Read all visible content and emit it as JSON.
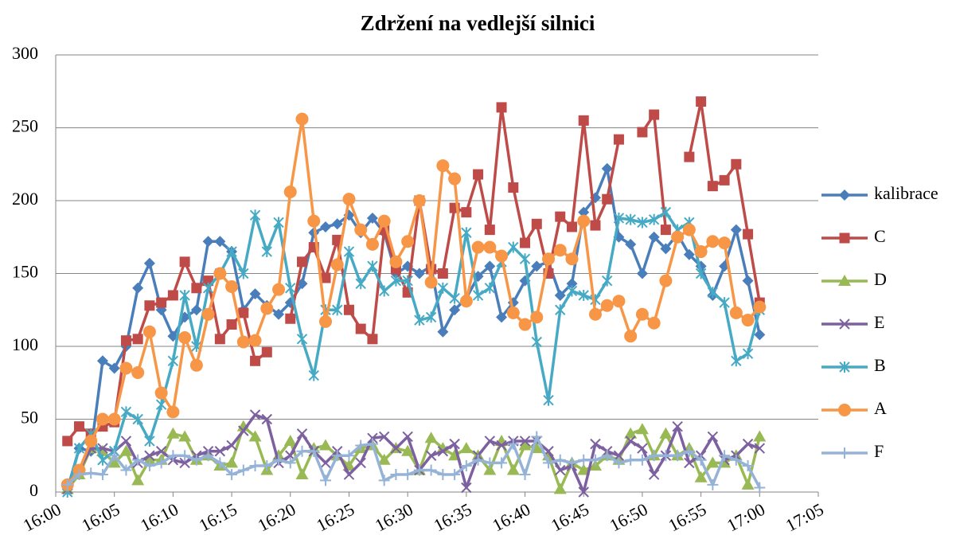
{
  "chart_data": {
    "type": "line",
    "title": "Zdržení na vedlejší silnici",
    "x": [
      "16:01",
      "16:02",
      "16:03",
      "16:04",
      "16:05",
      "16:06",
      "16:07",
      "16:08",
      "16:09",
      "16:10",
      "16:11",
      "16:12",
      "16:13",
      "16:14",
      "16:15",
      "16:16",
      "16:17",
      "16:18",
      "16:19",
      "16:20",
      "16:21",
      "16:22",
      "16:23",
      "16:24",
      "16:25",
      "16:26",
      "16:27",
      "16:28",
      "16:29",
      "16:30",
      "16:31",
      "16:32",
      "16:33",
      "16:34",
      "16:35",
      "16:36",
      "16:37",
      "16:38",
      "16:39",
      "16:40",
      "16:41",
      "16:42",
      "16:43",
      "16:44",
      "16:45",
      "16:46",
      "16:47",
      "16:48",
      "16:49",
      "16:50",
      "16:51",
      "16:52",
      "16:53",
      "16:54",
      "16:55",
      "16:56",
      "16:57",
      "16:58",
      "16:59",
      "17:00"
    ],
    "xlim": [
      "16:00",
      "17:05"
    ],
    "xticks": [
      "16:00",
      "16:05",
      "16:10",
      "16:15",
      "16:20",
      "16:25",
      "16:30",
      "16:35",
      "16:40",
      "16:45",
      "16:50",
      "16:55",
      "17:00",
      "17:05"
    ],
    "ylim": [
      0,
      300
    ],
    "yticks": [
      0,
      50,
      100,
      150,
      200,
      250,
      300
    ],
    "grid": true,
    "legend": "right",
    "series": [
      {
        "name": "kalibrace",
        "color": "#4a7ebb",
        "marker": "diamond",
        "values": [
          2,
          30,
          28,
          90,
          85,
          100,
          140,
          157,
          125,
          107,
          120,
          125,
          172,
          172,
          165,
          125,
          136,
          128,
          122,
          130,
          143,
          178,
          182,
          184,
          190,
          178,
          188,
          178,
          150,
          155,
          150,
          155,
          110,
          125,
          133,
          148,
          155,
          120,
          130,
          145,
          155,
          158,
          135,
          143,
          192,
          202,
          222,
          175,
          170,
          150,
          175,
          167,
          177,
          163,
          155,
          135,
          155,
          180,
          145,
          108
        ]
      },
      {
        "name": "C",
        "color": "#be4b48",
        "marker": "square",
        "values": [
          35,
          45,
          40,
          45,
          48,
          104,
          105,
          128,
          130,
          135,
          158,
          140,
          145,
          105,
          115,
          123,
          90,
          96,
          null,
          119,
          158,
          168,
          147,
          173,
          125,
          112,
          105,
          180,
          153,
          137,
          200,
          153,
          150,
          195,
          192,
          218,
          180,
          264,
          209,
          171,
          184,
          150,
          189,
          182,
          255,
          183,
          201,
          242,
          null,
          247,
          259,
          180,
          null,
          230,
          268,
          210,
          214,
          225,
          177,
          130
        ]
      },
      {
        "name": "D",
        "color": "#98b954",
        "marker": "triangle",
        "values": [
          2,
          12,
          30,
          28,
          20,
          28,
          8,
          22,
          22,
          40,
          38,
          22,
          25,
          18,
          20,
          45,
          38,
          15,
          25,
          35,
          12,
          30,
          32,
          25,
          18,
          30,
          32,
          22,
          30,
          28,
          15,
          37,
          30,
          25,
          30,
          25,
          15,
          35,
          15,
          32,
          30,
          25,
          2,
          20,
          15,
          18,
          25,
          22,
          40,
          43,
          25,
          40,
          25,
          30,
          10,
          20,
          20,
          25,
          5,
          38
        ]
      },
      {
        "name": "E",
        "color": "#7d60a0",
        "marker": "cross",
        "values": [
          2,
          15,
          30,
          30,
          28,
          35,
          20,
          25,
          28,
          22,
          20,
          25,
          28,
          28,
          32,
          42,
          53,
          50,
          20,
          25,
          40,
          28,
          20,
          28,
          12,
          20,
          37,
          38,
          30,
          38,
          15,
          25,
          28,
          33,
          3,
          25,
          35,
          32,
          35,
          35,
          35,
          28,
          15,
          18,
          0,
          33,
          28,
          25,
          35,
          30,
          12,
          25,
          45,
          20,
          25,
          38,
          22,
          25,
          33,
          30
        ]
      },
      {
        "name": "B",
        "color": "#46aac5",
        "marker": "star",
        "values": [
          0,
          30,
          40,
          22,
          28,
          55,
          50,
          35,
          60,
          90,
          135,
          100,
          140,
          150,
          165,
          150,
          190,
          165,
          185,
          140,
          105,
          80,
          125,
          125,
          165,
          143,
          155,
          138,
          145,
          145,
          118,
          120,
          140,
          133,
          178,
          135,
          140,
          158,
          168,
          160,
          103,
          63,
          125,
          138,
          135,
          132,
          145,
          188,
          187,
          185,
          187,
          192,
          180,
          185,
          150,
          137,
          130,
          90,
          95,
          125
        ]
      },
      {
        "name": "A",
        "color": "#f79646",
        "marker": "circle",
        "values": [
          5,
          15,
          35,
          50,
          50,
          85,
          82,
          110,
          68,
          55,
          106,
          87,
          122,
          150,
          141,
          103,
          104,
          126,
          139,
          206,
          256,
          186,
          117,
          156,
          201,
          180,
          170,
          186,
          158,
          172,
          200,
          144,
          224,
          215,
          131,
          168,
          168,
          162,
          123,
          115,
          120,
          160,
          166,
          160,
          186,
          122,
          128,
          131,
          107,
          122,
          116,
          145,
          175,
          180,
          165,
          172,
          171,
          123,
          118,
          127
        ]
      },
      {
        "name": "F",
        "color": "#95b3d7",
        "marker": "plus",
        "values": [
          5,
          12,
          13,
          12,
          25,
          15,
          22,
          18,
          20,
          25,
          25,
          22,
          25,
          20,
          12,
          15,
          18,
          18,
          22,
          20,
          28,
          28,
          8,
          25,
          25,
          32,
          33,
          8,
          12,
          12,
          15,
          15,
          12,
          12,
          18,
          22,
          20,
          20,
          33,
          12,
          38,
          20,
          22,
          20,
          22,
          22,
          25,
          20,
          22,
          22,
          25,
          25,
          25,
          28,
          22,
          5,
          25,
          22,
          18,
          3
        ]
      }
    ]
  }
}
